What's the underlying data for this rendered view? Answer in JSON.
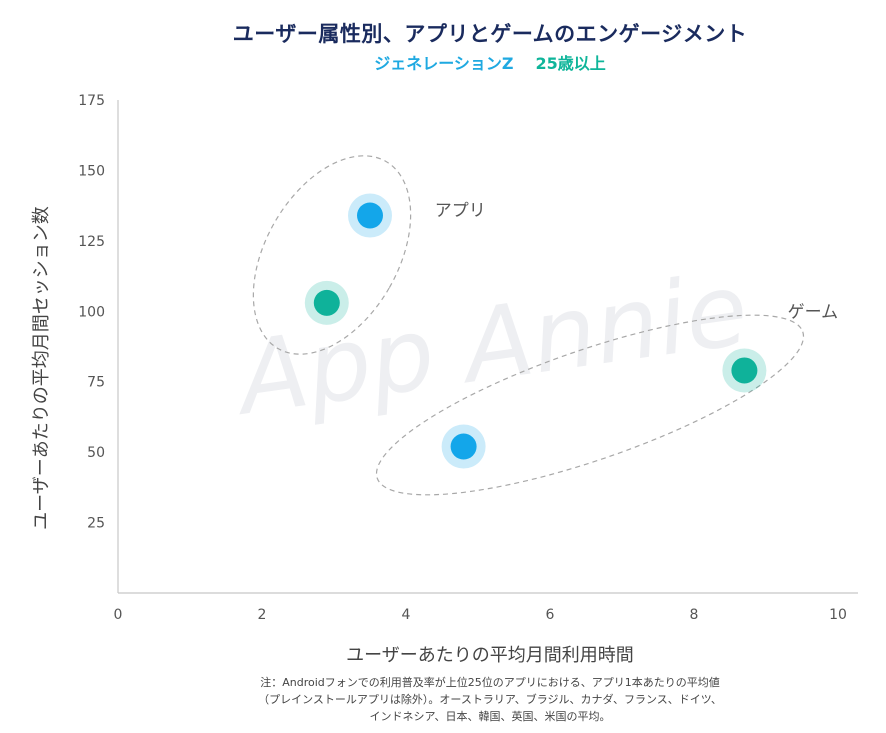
{
  "title": "ユーザー属性別、アプリとゲームのエンゲージメント",
  "subtitle": {
    "segment": "ジェネレーションZ",
    "age": "25歳以上"
  },
  "watermark": "App Annie",
  "note": {
    "line1": "注：Androidフォンでの利用普及率が上位25位のアプリにおける、アプリ1本あたりの平均値",
    "line2": "（プレインストールアプリは除外）。オーストラリア、ブラジル、カナダ、フランス、ドイツ、",
    "line3": "インドネシア、日本、韓国、英国、米国の平均。"
  },
  "colors": {
    "genz": "#13a6ea",
    "age25": "#0fb29a",
    "title": "#1a2b5e"
  },
  "chart_data": {
    "type": "scatter",
    "xlabel": "ユーザーあたりの平均月間利用時間",
    "ylabel": "ユーザーあたりの平均月間セッション数",
    "xlim": [
      0,
      10
    ],
    "ylim": [
      0,
      175
    ],
    "xticks": [
      0,
      2,
      4,
      6,
      8,
      10
    ],
    "yticks": [
      25,
      50,
      75,
      100,
      125,
      150,
      175
    ],
    "grid": false,
    "series": [
      {
        "name": "ジェネレーションZ",
        "color": "#13a6ea",
        "points": [
          {
            "group": "アプリ",
            "x": 3.5,
            "y": 134
          },
          {
            "group": "ゲーム",
            "x": 4.8,
            "y": 52
          }
        ]
      },
      {
        "name": "25歳以上",
        "color": "#0fb29a",
        "points": [
          {
            "group": "アプリ",
            "x": 2.9,
            "y": 103
          },
          {
            "group": "ゲーム",
            "x": 8.7,
            "y": 79
          }
        ]
      }
    ],
    "annotations": [
      {
        "label": "アプリ",
        "x": 4.4,
        "y": 136
      },
      {
        "label": "ゲーム",
        "x": 9.3,
        "y": 100
      }
    ]
  }
}
